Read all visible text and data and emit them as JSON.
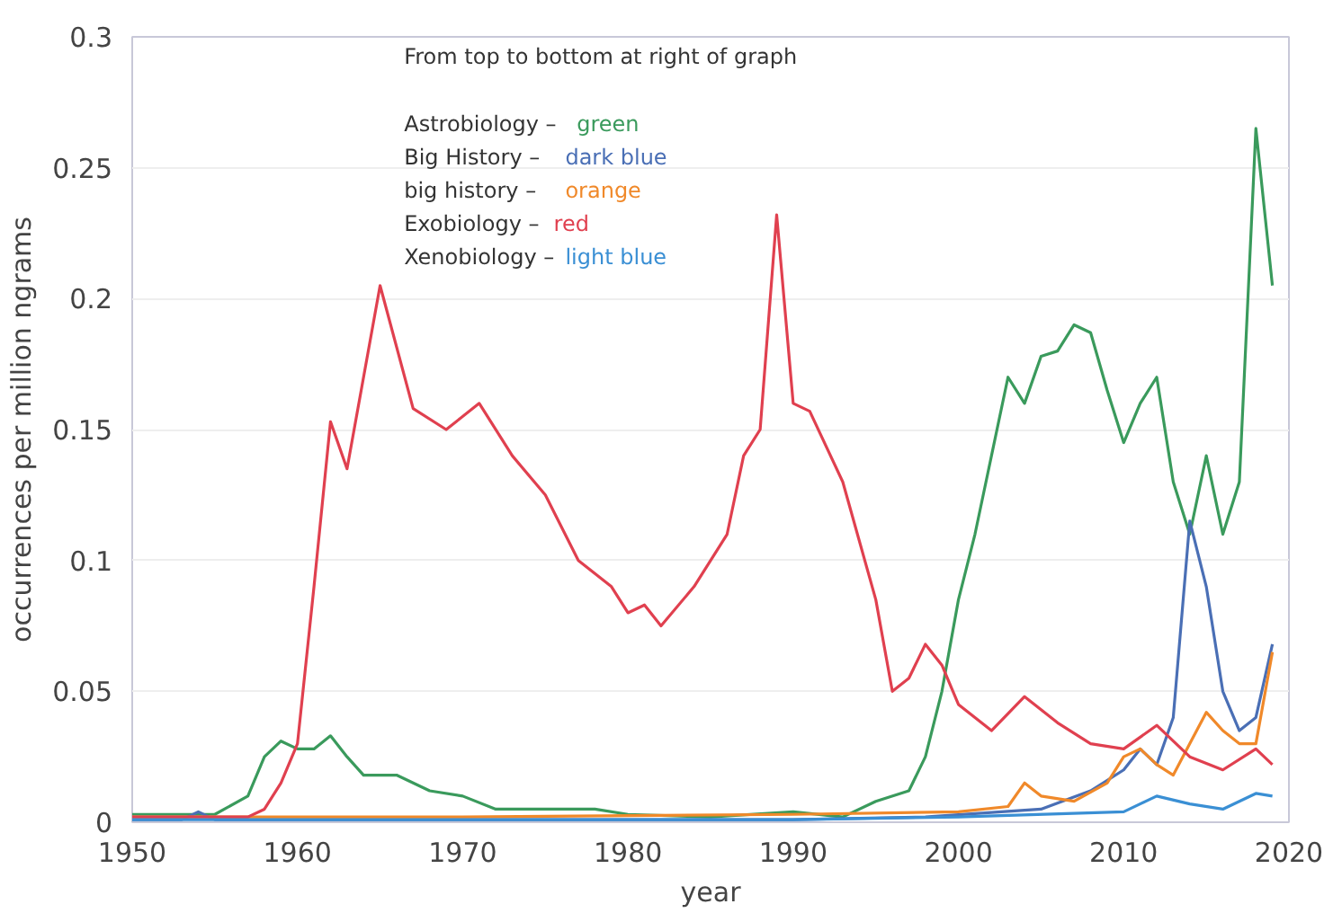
{
  "chart_data": {
    "type": "line",
    "xlabel": "year",
    "ylabel": "occurrences per million ngrams",
    "xlim": [
      1950,
      2020
    ],
    "xticks": [
      1950,
      1960,
      1970,
      1980,
      1990,
      2000,
      2010,
      2020
    ],
    "ylim": [
      0,
      0.3
    ],
    "yticks": [
      0,
      0.05,
      0.1,
      0.15,
      0.2,
      0.25,
      0.3
    ],
    "grid": "y",
    "marker": "none",
    "line_style": "solid",
    "annotations": [
      "From top to bottom at right of graph",
      "Astrobiology – green",
      "Big History – dark blue",
      "big history – orange",
      "Exobiology – red",
      "Xenobiology – light blue"
    ],
    "series": [
      {
        "color": "#3a9a5c",
        "x": [
          1950,
          1955,
          1957,
          1958,
          1959,
          1960,
          1961,
          1962,
          1963,
          1964,
          1966,
          1968,
          1970,
          1972,
          1975,
          1978,
          1980,
          1985,
          1990,
          1993,
          1995,
          1997,
          1998,
          1999,
          2000,
          2001,
          2002,
          2003,
          2004,
          2005,
          2006,
          2007,
          2008,
          2009,
          2010,
          2011,
          2012,
          2013,
          2014,
          2015,
          2016,
          2017,
          2018,
          2019
        ],
        "values": [
          0.003,
          0.003,
          0.01,
          0.025,
          0.031,
          0.028,
          0.028,
          0.033,
          0.025,
          0.018,
          0.018,
          0.012,
          0.01,
          0.005,
          0.005,
          0.005,
          0.003,
          0.002,
          0.004,
          0.002,
          0.008,
          0.012,
          0.025,
          0.05,
          0.085,
          0.11,
          0.14,
          0.17,
          0.16,
          0.178,
          0.18,
          0.19,
          0.187,
          0.165,
          0.145,
          0.16,
          0.17,
          0.13,
          0.11,
          0.14,
          0.11,
          0.13,
          0.265,
          0.205
        ]
      },
      {
        "color": "#4a6fb5",
        "x": [
          1950,
          1953,
          1954,
          1955,
          1970,
          1990,
          1998,
          2005,
          2008,
          2010,
          2011,
          2012,
          2013,
          2014,
          2015,
          2016,
          2017,
          2018,
          2019
        ],
        "values": [
          0.001,
          0.001,
          0.004,
          0.001,
          0.001,
          0.001,
          0.002,
          0.005,
          0.012,
          0.02,
          0.028,
          0.022,
          0.04,
          0.115,
          0.09,
          0.05,
          0.035,
          0.04,
          0.068
        ]
      },
      {
        "color": "#f0892a",
        "x": [
          1950,
          1970,
          1990,
          2000,
          2003,
          2004,
          2005,
          2007,
          2009,
          2010,
          2011,
          2012,
          2013,
          2014,
          2015,
          2016,
          2017,
          2018,
          2019
        ],
        "values": [
          0.002,
          0.002,
          0.003,
          0.004,
          0.006,
          0.015,
          0.01,
          0.008,
          0.015,
          0.025,
          0.028,
          0.022,
          0.018,
          0.03,
          0.042,
          0.035,
          0.03,
          0.03,
          0.065
        ]
      },
      {
        "color": "#e0404f",
        "x": [
          1950,
          1957,
          1958,
          1959,
          1960,
          1961,
          1962,
          1963,
          1965,
          1967,
          1969,
          1971,
          1973,
          1975,
          1977,
          1979,
          1980,
          1981,
          1982,
          1984,
          1986,
          1987,
          1988,
          1989,
          1990,
          1991,
          1993,
          1995,
          1996,
          1997,
          1998,
          1999,
          2000,
          2002,
          2004,
          2006,
          2008,
          2010,
          2012,
          2014,
          2016,
          2018,
          2019
        ],
        "values": [
          0.002,
          0.002,
          0.005,
          0.015,
          0.03,
          0.09,
          0.153,
          0.135,
          0.205,
          0.158,
          0.15,
          0.16,
          0.14,
          0.125,
          0.1,
          0.09,
          0.08,
          0.083,
          0.075,
          0.09,
          0.11,
          0.14,
          0.15,
          0.232,
          0.16,
          0.157,
          0.13,
          0.085,
          0.05,
          0.055,
          0.068,
          0.06,
          0.045,
          0.035,
          0.048,
          0.038,
          0.03,
          0.028,
          0.037,
          0.025,
          0.02,
          0.028,
          0.022
        ]
      },
      {
        "color": "#3a8fd4",
        "x": [
          1950,
          1970,
          1990,
          2000,
          2010,
          2012,
          2014,
          2016,
          2018,
          2019
        ],
        "values": [
          0.001,
          0.001,
          0.001,
          0.002,
          0.004,
          0.01,
          0.007,
          0.005,
          0.011,
          0.01
        ]
      }
    ]
  }
}
